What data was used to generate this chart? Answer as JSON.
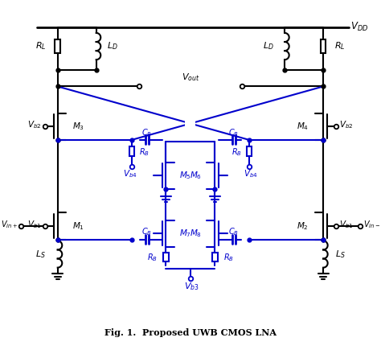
{
  "title": "Fig. 1.  Proposed UWB CMOS LNA",
  "bg": "#ffffff",
  "bk": "#000000",
  "bl": "#0000cc",
  "lw": 1.5,
  "lwb": 1.5
}
